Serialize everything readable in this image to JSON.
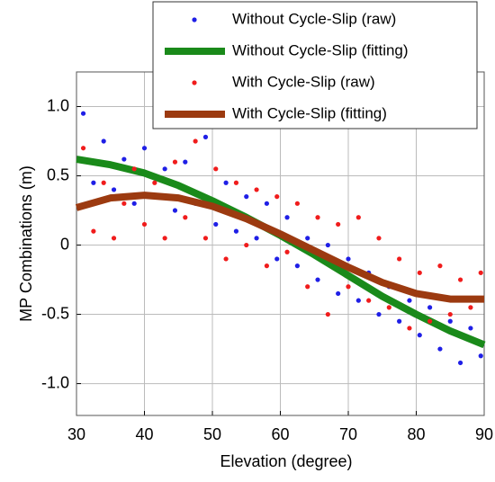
{
  "chart_data": {
    "type": "scatter",
    "xlabel": "Elevation (degree)",
    "ylabel": "MP Combinations (m)",
    "xlim": [
      30,
      90
    ],
    "xticks": [
      30,
      40,
      50,
      60,
      70,
      80,
      90
    ],
    "ylim": [
      -1.23,
      1.25
    ],
    "yticks": [
      {
        "value": -1,
        "label": "-1.0"
      },
      -0.5,
      0,
      0.5,
      {
        "value": 1,
        "label": "1.0"
      }
    ],
    "grid": true,
    "legend": "upper right",
    "series": [
      {
        "name": "Without Cycle-Slip (raw)",
        "type": "scatter",
        "color": "#1f1fe6",
        "x": [
          31,
          32.5,
          34,
          35.5,
          37,
          38.5,
          40,
          41.5,
          43,
          44.5,
          46,
          47.5,
          49,
          50.5,
          52,
          53.5,
          55,
          56.5,
          58,
          59.5,
          61,
          62.5,
          64,
          65.5,
          67,
          68.5,
          70,
          71.5,
          73,
          74.5,
          76,
          77.5,
          79,
          80.5,
          82,
          83.5,
          85,
          86.5,
          88,
          89.5
        ],
        "values": [
          0.95,
          0.45,
          0.75,
          0.4,
          0.62,
          0.3,
          0.7,
          0.35,
          0.55,
          0.25,
          0.6,
          0.3,
          0.78,
          0.15,
          0.45,
          0.1,
          0.35,
          0.05,
          0.3,
          -0.1,
          0.2,
          -0.15,
          0.05,
          -0.25,
          0.0,
          -0.35,
          -0.1,
          -0.4,
          -0.2,
          -0.5,
          -0.3,
          -0.55,
          -0.4,
          -0.65,
          -0.45,
          -0.75,
          -0.55,
          -0.85,
          -0.6,
          -0.8
        ]
      },
      {
        "name": "Without Cycle-Slip (fitting)",
        "type": "line",
        "color": "#1a8a1a",
        "x": [
          30,
          35,
          40,
          45,
          50,
          55,
          60,
          65,
          70,
          75,
          80,
          85,
          90
        ],
        "values": [
          0.62,
          0.58,
          0.52,
          0.43,
          0.32,
          0.2,
          0.07,
          -0.07,
          -0.22,
          -0.37,
          -0.5,
          -0.62,
          -0.72
        ]
      },
      {
        "name": "With Cycle-Slip (raw)",
        "type": "scatter",
        "color": "#f01c1c",
        "x": [
          31,
          32.5,
          34,
          35.5,
          37,
          38.5,
          40,
          41.5,
          43,
          44.5,
          46,
          47.5,
          49,
          50.5,
          52,
          53.5,
          55,
          56.5,
          58,
          59.5,
          61,
          62.5,
          64,
          65.5,
          67,
          68.5,
          70,
          71.5,
          73,
          74.5,
          76,
          77.5,
          79,
          80.5,
          82,
          83.5,
          85,
          86.5,
          88,
          89.5
        ],
        "values": [
          0.7,
          0.1,
          0.45,
          0.05,
          0.3,
          0.55,
          0.15,
          0.45,
          0.05,
          0.6,
          0.2,
          0.75,
          0.05,
          0.55,
          -0.1,
          0.45,
          0.0,
          0.4,
          -0.15,
          0.35,
          -0.05,
          0.3,
          -0.3,
          0.2,
          -0.5,
          0.15,
          -0.3,
          0.2,
          -0.4,
          0.05,
          -0.45,
          -0.1,
          -0.6,
          -0.2,
          -0.55,
          -0.15,
          -0.5,
          -0.25,
          -0.45,
          -0.2
        ]
      },
      {
        "name": "With Cycle-Slip (fitting)",
        "type": "line",
        "color": "#9c3a10",
        "x": [
          30,
          35,
          40,
          45,
          50,
          55,
          60,
          65,
          70,
          75,
          80,
          85,
          90
        ],
        "values": [
          0.27,
          0.34,
          0.36,
          0.34,
          0.28,
          0.19,
          0.08,
          -0.04,
          -0.16,
          -0.27,
          -0.35,
          -0.39,
          -0.39
        ]
      }
    ]
  }
}
